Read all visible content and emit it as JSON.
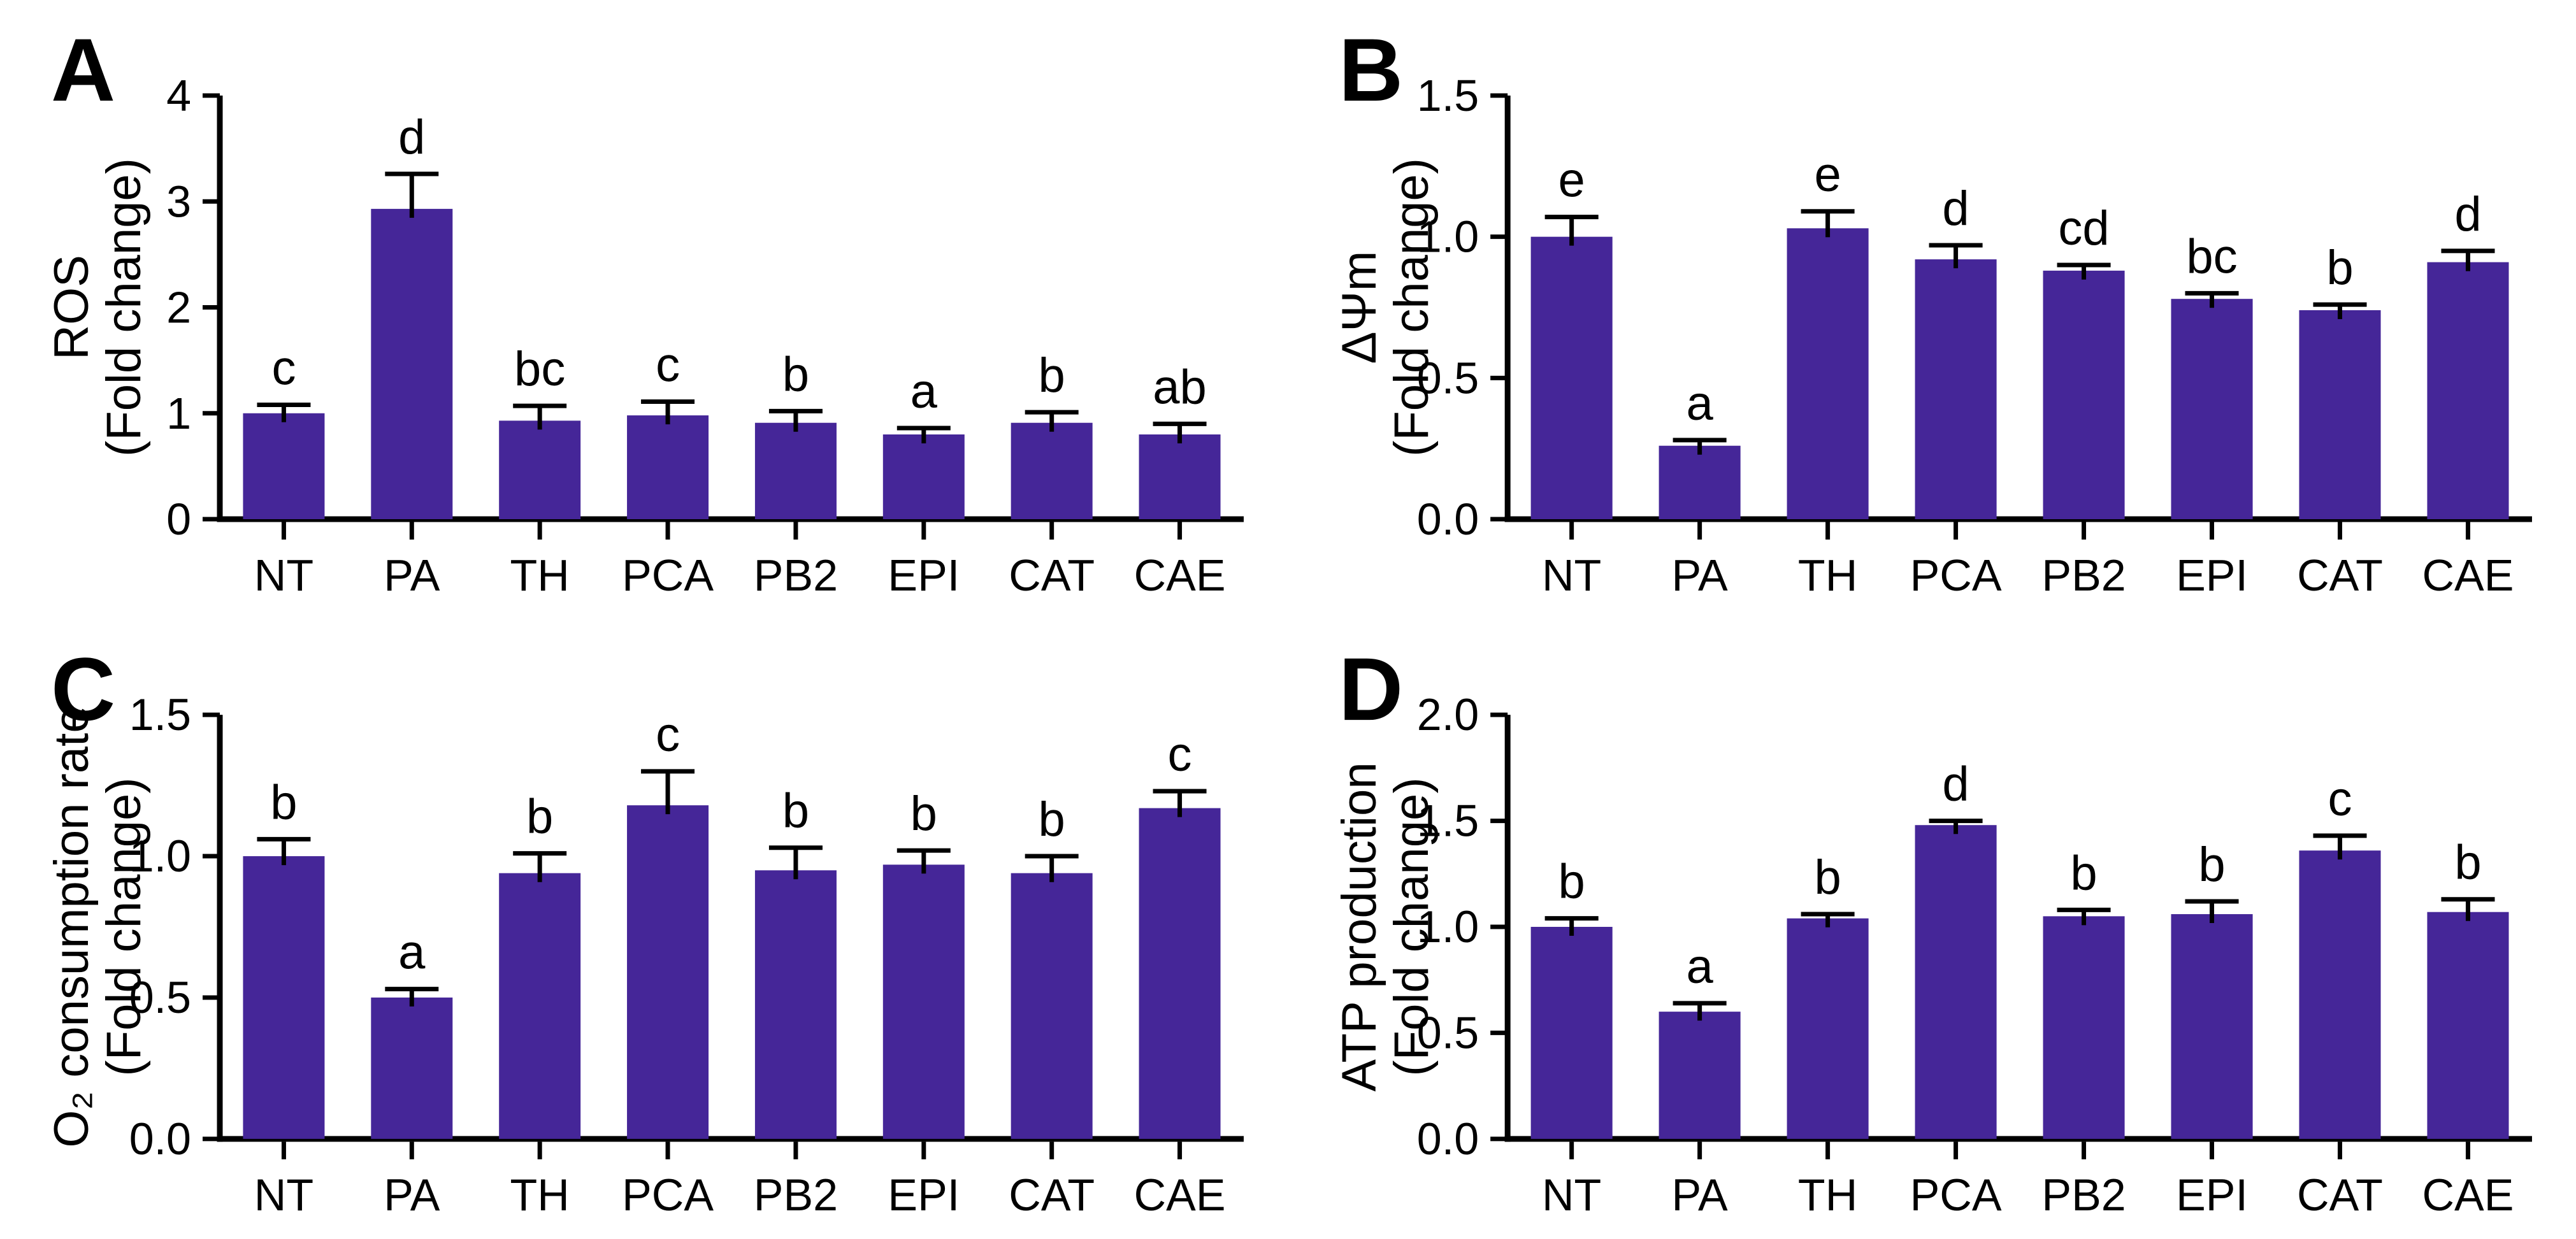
{
  "figure": {
    "background": "#ffffff",
    "bar_color": "#452698",
    "axis_color": "#000000",
    "text_color": "#000000",
    "error_bar_color": "#000000"
  },
  "chart_data": [
    {
      "type": "bar",
      "panel_label": "A",
      "ylabel_lines": [
        "ROS",
        "(Fold change)"
      ],
      "xlabel": "",
      "categories": [
        "NT",
        "PA",
        "TH",
        "PCA",
        "PB2",
        "EPI",
        "CAT",
        "CAE"
      ],
      "values": [
        1.0,
        2.93,
        0.93,
        0.98,
        0.91,
        0.8,
        0.91,
        0.8
      ],
      "errors": [
        0.08,
        0.33,
        0.14,
        0.13,
        0.11,
        0.06,
        0.1,
        0.1
      ],
      "sig_letters": [
        "c",
        "d",
        "bc",
        "c",
        "b",
        "a",
        "b",
        "ab"
      ],
      "ylim": [
        0,
        4
      ],
      "yticks": [
        0,
        1,
        2,
        3,
        4
      ],
      "ytick_labels": [
        "0",
        "1",
        "2",
        "3",
        "4"
      ],
      "grid": false,
      "legend": false
    },
    {
      "type": "bar",
      "panel_label": "B",
      "ylabel_lines": [
        "ΔΨm",
        "(Fold change)"
      ],
      "xlabel": "",
      "categories": [
        "NT",
        "PA",
        "TH",
        "PCA",
        "PB2",
        "EPI",
        "CAT",
        "CAE"
      ],
      "values": [
        1.0,
        0.26,
        1.03,
        0.92,
        0.88,
        0.78,
        0.74,
        0.91
      ],
      "errors": [
        0.07,
        0.02,
        0.06,
        0.05,
        0.02,
        0.02,
        0.02,
        0.04
      ],
      "sig_letters": [
        "e",
        "a",
        "e",
        "d",
        "cd",
        "bc",
        "b",
        "d"
      ],
      "ylim": [
        0,
        1.5
      ],
      "yticks": [
        0,
        0.5,
        1.0,
        1.5
      ],
      "ytick_labels": [
        "0.0",
        "0.5",
        "1.0",
        "1.5"
      ],
      "grid": false,
      "legend": false
    },
    {
      "type": "bar",
      "panel_label": "C",
      "ylabel_lines": [
        "O₂ consumption rate",
        "(Fold change)"
      ],
      "xlabel": "",
      "categories": [
        "NT",
        "PA",
        "TH",
        "PCA",
        "PB2",
        "EPI",
        "CAT",
        "CAE"
      ],
      "values": [
        1.0,
        0.5,
        0.94,
        1.18,
        0.95,
        0.97,
        0.94,
        1.17
      ],
      "errors": [
        0.06,
        0.03,
        0.07,
        0.12,
        0.08,
        0.05,
        0.06,
        0.06
      ],
      "sig_letters": [
        "b",
        "a",
        "b",
        "c",
        "b",
        "b",
        "b",
        "c"
      ],
      "ylim": [
        0,
        1.5
      ],
      "yticks": [
        0,
        0.5,
        1.0,
        1.5
      ],
      "ytick_labels": [
        "0.0",
        "0.5",
        "1.0",
        "1.5"
      ],
      "grid": false,
      "legend": false
    },
    {
      "type": "bar",
      "panel_label": "D",
      "ylabel_lines": [
        "ATP production",
        "(Fold change)"
      ],
      "xlabel": "",
      "categories": [
        "NT",
        "PA",
        "TH",
        "PCA",
        "PB2",
        "EPI",
        "CAT",
        "CAE"
      ],
      "values": [
        1.0,
        0.6,
        1.04,
        1.48,
        1.05,
        1.06,
        1.36,
        1.07
      ],
      "errors": [
        0.04,
        0.04,
        0.02,
        0.02,
        0.03,
        0.06,
        0.07,
        0.06
      ],
      "sig_letters": [
        "b",
        "a",
        "b",
        "d",
        "b",
        "b",
        "c",
        "b"
      ],
      "ylim": [
        0,
        2.0
      ],
      "yticks": [
        0,
        0.5,
        1.0,
        1.5,
        2.0
      ],
      "ytick_labels": [
        "0.0",
        "0.5",
        "1.0",
        "1.5",
        "2.0"
      ],
      "grid": false,
      "legend": false
    }
  ]
}
